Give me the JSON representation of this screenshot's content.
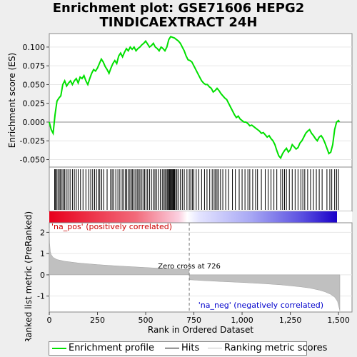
{
  "chart_data": {
    "type": "line",
    "title": [
      "Enrichment plot: GSE71606 HEPG2",
      "TINDICAEXTRACT 24H"
    ],
    "top_panel": {
      "ylabel": "Enrichment score (ES)",
      "ylim": [
        -0.06,
        0.118
      ],
      "yticks": [
        0.1,
        0.075,
        0.05,
        0.025,
        0.0,
        -0.025,
        -0.05
      ],
      "ytick_labels": [
        "0.100",
        "0.075",
        "0.050",
        "0.025",
        "0.000",
        "-0.025",
        "-0.050"
      ],
      "series": [
        {
          "name": "Enrichment profile",
          "color": "#00e000",
          "x": [
            0,
            10,
            20,
            30,
            40,
            50,
            60,
            70,
            80,
            90,
            100,
            110,
            120,
            130,
            140,
            150,
            160,
            170,
            180,
            190,
            200,
            210,
            220,
            230,
            240,
            250,
            260,
            270,
            280,
            290,
            300,
            310,
            320,
            330,
            340,
            350,
            360,
            370,
            380,
            390,
            400,
            410,
            420,
            430,
            440,
            450,
            460,
            470,
            480,
            490,
            500,
            510,
            520,
            530,
            540,
            550,
            560,
            570,
            580,
            590,
            600,
            610,
            620,
            630,
            640,
            650,
            660,
            670,
            680,
            690,
            700,
            710,
            720,
            730,
            740,
            750,
            760,
            770,
            780,
            790,
            800,
            810,
            820,
            830,
            840,
            850,
            860,
            870,
            880,
            890,
            900,
            910,
            920,
            930,
            940,
            950,
            960,
            970,
            980,
            990,
            1000,
            1010,
            1020,
            1030,
            1040,
            1050,
            1060,
            1070,
            1080,
            1090,
            1100,
            1110,
            1120,
            1130,
            1140,
            1150,
            1160,
            1170,
            1180,
            1190,
            1200,
            1210,
            1220,
            1230,
            1240,
            1250,
            1260,
            1270,
            1280,
            1290,
            1300,
            1310,
            1320,
            1330,
            1340,
            1350,
            1360,
            1370,
            1380,
            1390,
            1400,
            1410,
            1420,
            1430,
            1440,
            1450,
            1460,
            1470,
            1480,
            1490,
            1500,
            1505
          ],
          "y": [
            0.0,
            -0.01,
            -0.015,
            0.01,
            0.028,
            0.032,
            0.035,
            0.05,
            0.055,
            0.048,
            0.052,
            0.055,
            0.05,
            0.055,
            0.058,
            0.052,
            0.06,
            0.058,
            0.062,
            0.055,
            0.05,
            0.058,
            0.065,
            0.07,
            0.068,
            0.072,
            0.078,
            0.084,
            0.08,
            0.074,
            0.07,
            0.065,
            0.072,
            0.078,
            0.082,
            0.078,
            0.088,
            0.092,
            0.087,
            0.093,
            0.098,
            0.095,
            0.1,
            0.097,
            0.1,
            0.095,
            0.098,
            0.1,
            0.103,
            0.105,
            0.108,
            0.104,
            0.1,
            0.102,
            0.105,
            0.1,
            0.098,
            0.095,
            0.1,
            0.098,
            0.095,
            0.1,
            0.11,
            0.114,
            0.113,
            0.112,
            0.11,
            0.108,
            0.105,
            0.1,
            0.095,
            0.088,
            0.083,
            0.082,
            0.08,
            0.075,
            0.07,
            0.065,
            0.06,
            0.055,
            0.052,
            0.05,
            0.05,
            0.047,
            0.045,
            0.04,
            0.042,
            0.045,
            0.042,
            0.038,
            0.035,
            0.032,
            0.03,
            0.025,
            0.02,
            0.015,
            0.01,
            0.006,
            0.008,
            0.004,
            0.002,
            0.0,
            0.0,
            -0.002,
            -0.005,
            -0.004,
            -0.006,
            -0.008,
            -0.01,
            -0.012,
            -0.015,
            -0.014,
            -0.017,
            -0.02,
            -0.018,
            -0.022,
            -0.025,
            -0.03,
            -0.038,
            -0.045,
            -0.048,
            -0.042,
            -0.038,
            -0.035,
            -0.04,
            -0.037,
            -0.03,
            -0.033,
            -0.036,
            -0.034,
            -0.028,
            -0.025,
            -0.02,
            -0.015,
            -0.012,
            -0.01,
            -0.015,
            -0.018,
            -0.022,
            -0.025,
            -0.02,
            -0.018,
            -0.022,
            -0.028,
            -0.035,
            -0.042,
            -0.04,
            -0.03,
            -0.01,
            0.0,
            0.002,
            0.0
          ]
        }
      ]
    },
    "hits": {
      "name": "Hits",
      "x": [
        28,
        32,
        38,
        45,
        52,
        58,
        66,
        72,
        80,
        88,
        97,
        108,
        120,
        130,
        140,
        150,
        162,
        175,
        190,
        205,
        215,
        225,
        235,
        245,
        255,
        262,
        272,
        282,
        300,
        318,
        326,
        334,
        345,
        356,
        366,
        378,
        386,
        395,
        402,
        410,
        418,
        426,
        432,
        440,
        448,
        456,
        463,
        470,
        478,
        486,
        494,
        502,
        510,
        520,
        530,
        540,
        548,
        556,
        566,
        576,
        586,
        594,
        600,
        606,
        612,
        618,
        622,
        626,
        630,
        634,
        638,
        642,
        646,
        650,
        656,
        662,
        670,
        680,
        690,
        700,
        714,
        726,
        734,
        742,
        750,
        762,
        775,
        790,
        805,
        818,
        832,
        845,
        855,
        862,
        870,
        878,
        888,
        900,
        915,
        930,
        950,
        965,
        985,
        1000,
        1015,
        1030,
        1040,
        1055,
        1070,
        1080,
        1100,
        1120,
        1135,
        1150,
        1165,
        1180,
        1200,
        1210,
        1220,
        1230,
        1245,
        1260,
        1275,
        1290,
        1305,
        1315,
        1325,
        1340,
        1355,
        1370,
        1385,
        1400,
        1415,
        1440,
        1455,
        1465,
        1480,
        1490,
        1500
      ]
    },
    "bottom_panel": {
      "ylabel": "Ranked list metric (PreRanked)",
      "ylim": [
        -1.75,
        2.45
      ],
      "yticks": [
        2,
        1,
        0,
        -1
      ],
      "xlabel": "Rank in Ordered Dataset",
      "xlim": [
        0,
        1570
      ],
      "xticks": [
        0,
        250,
        500,
        750,
        1000,
        1250,
        1500
      ],
      "xtick_labels": [
        "0",
        "250",
        "500",
        "750",
        "1,000",
        "1,250",
        "1,500"
      ],
      "series": [
        {
          "name": "Ranking metric scores",
          "color": "#c0c0c0",
          "x": [
            0,
            2,
            5,
            10,
            20,
            40,
            80,
            150,
            250,
            350,
            450,
            550,
            650,
            725,
            727,
            800,
            900,
            1000,
            1100,
            1200,
            1300,
            1350,
            1400,
            1430,
            1460,
            1480,
            1495,
            1502,
            1506,
            1507
          ],
          "y": [
            2.2,
            1.5,
            1.1,
            0.95,
            0.82,
            0.72,
            0.64,
            0.56,
            0.48,
            0.42,
            0.37,
            0.32,
            0.28,
            0.25,
            -0.23,
            -0.27,
            -0.32,
            -0.36,
            -0.41,
            -0.47,
            -0.56,
            -0.62,
            -0.72,
            -0.8,
            -0.92,
            -1.05,
            -1.25,
            -1.5,
            -1.65,
            -1.7
          ]
        }
      ],
      "zero_cross": 726,
      "zero_cross_label": "Zero cross at 726",
      "pos_label": "'na_pos' (positively correlated)",
      "neg_label": "'na_neg' (negatively correlated)"
    },
    "legend": [
      "Enrichment profile",
      "Hits",
      "Ranking metric scores"
    ],
    "colors": {
      "es_line": "#00e000",
      "hits": "#000000",
      "metric": "#c0c0c0",
      "pos_text": "#cc0000",
      "neg_text": "#0000cc"
    }
  }
}
